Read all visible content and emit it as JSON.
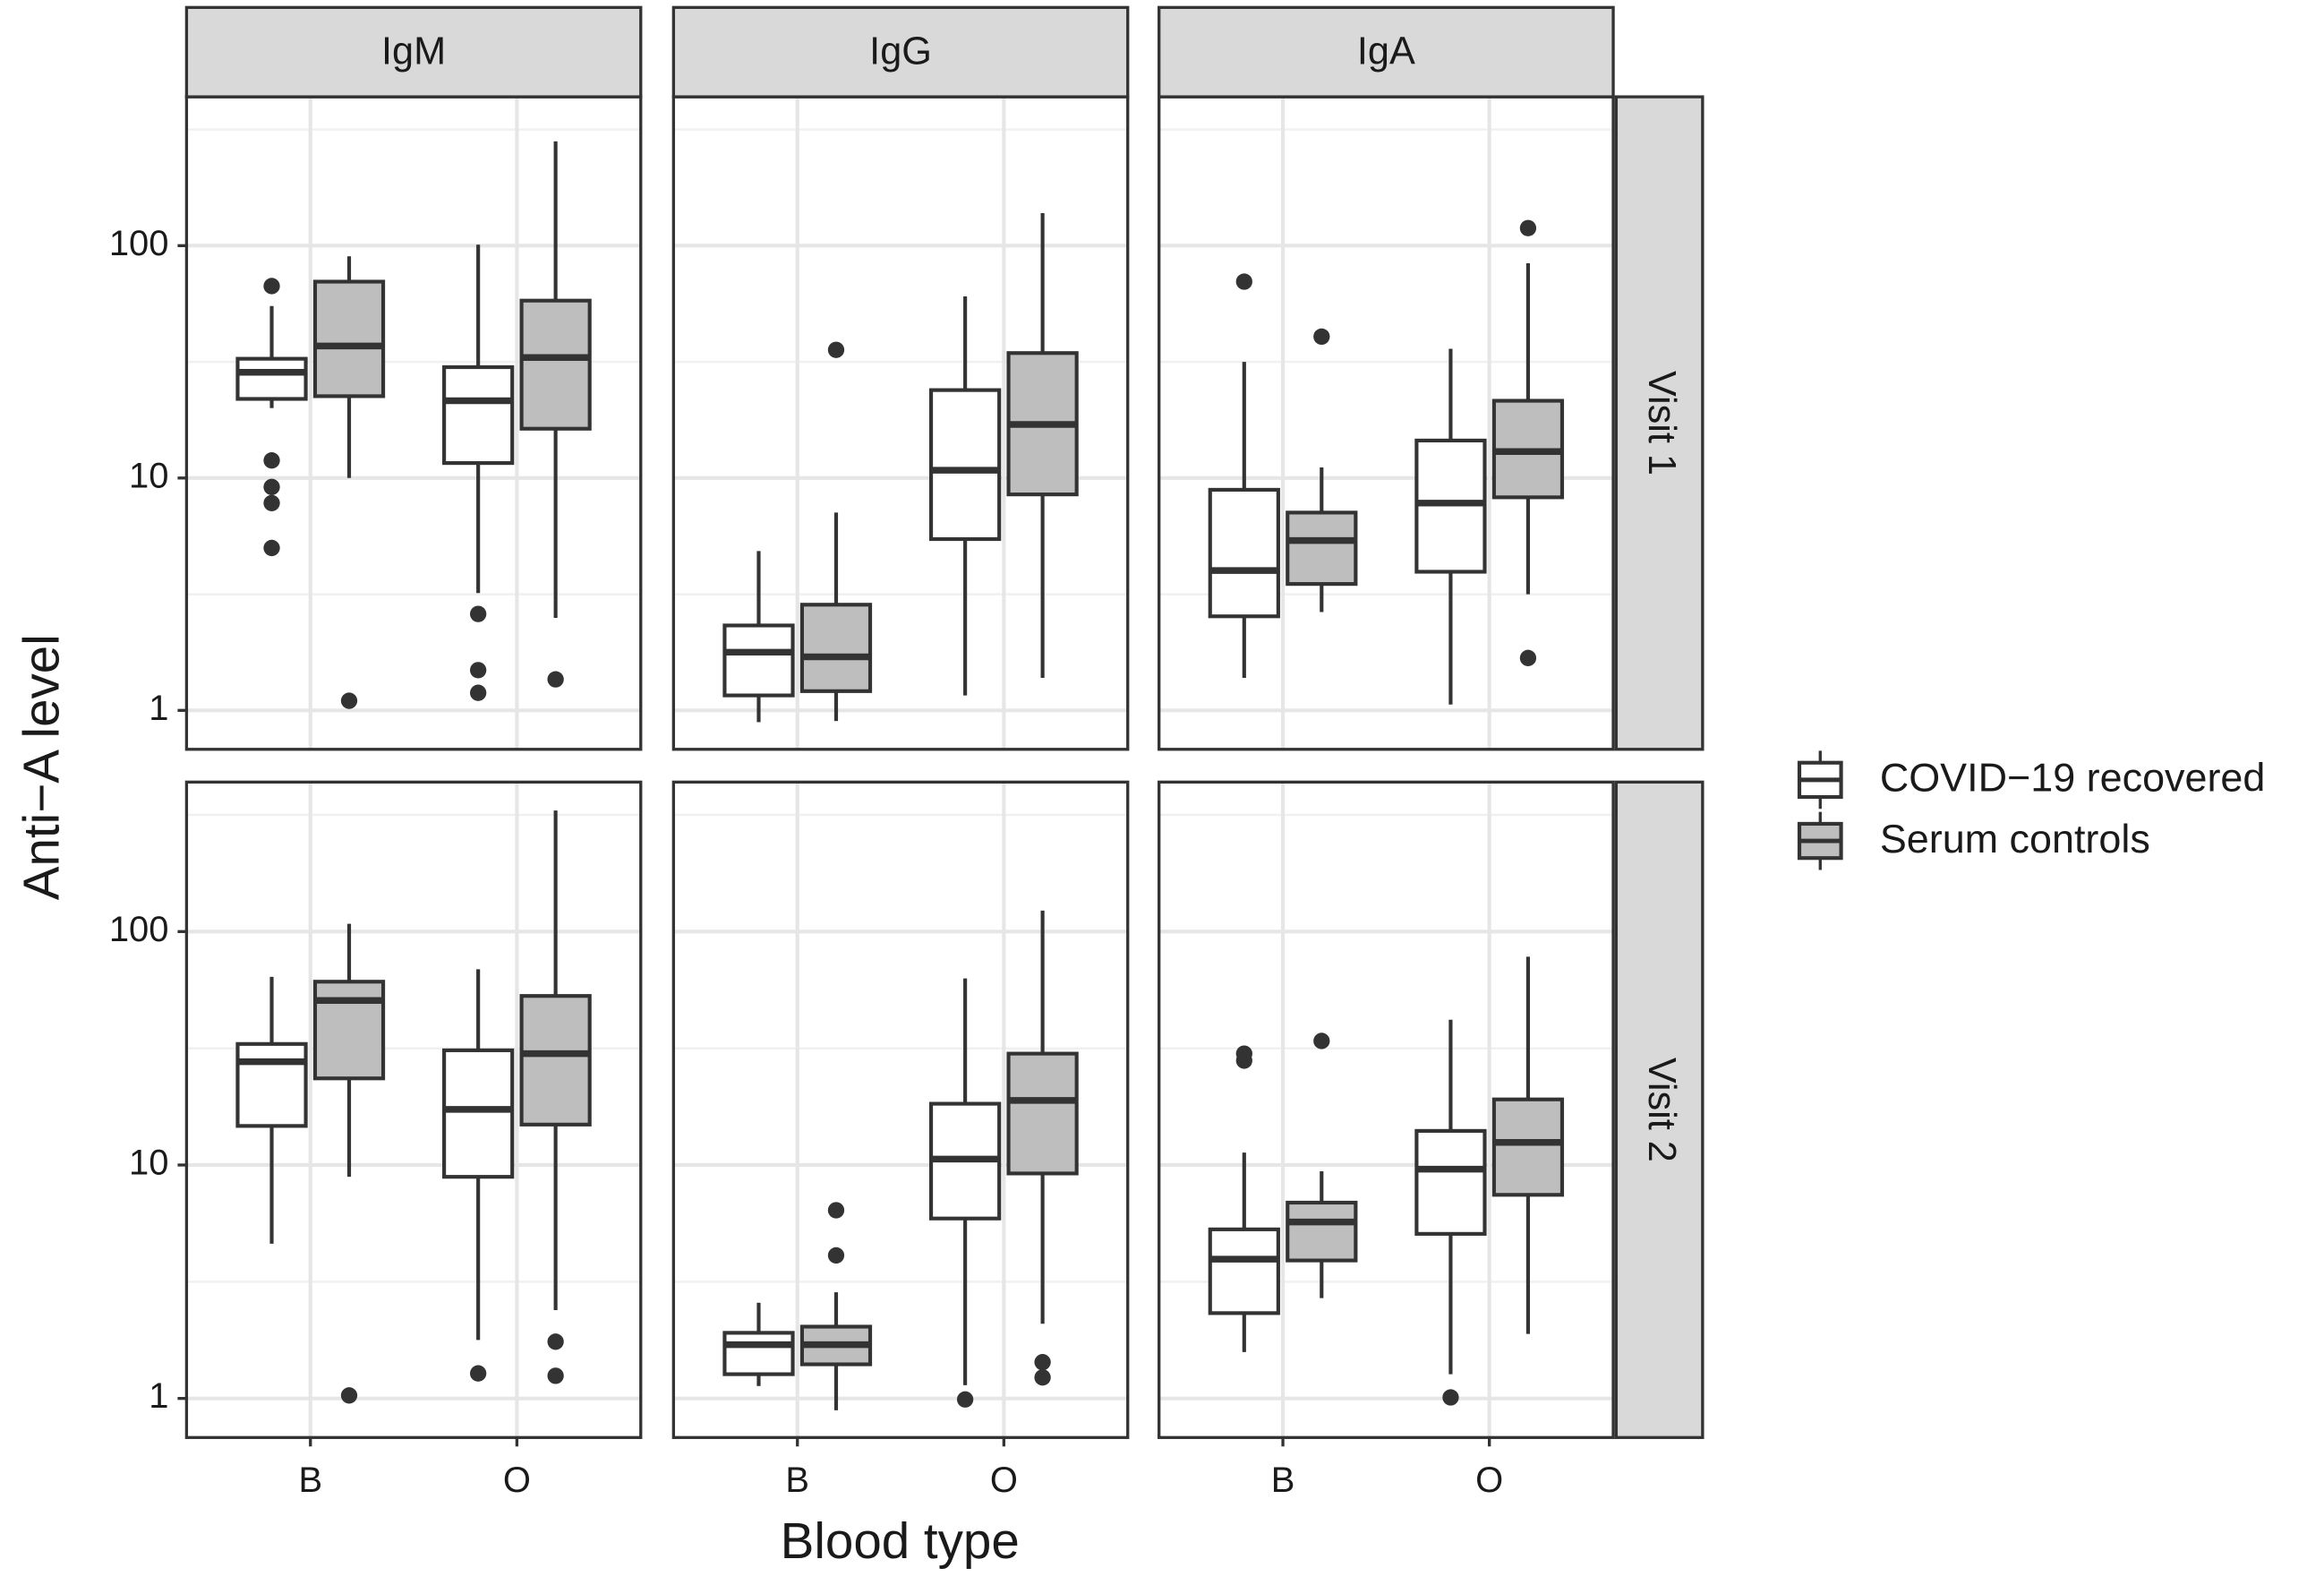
{
  "chart_data": {
    "type": "box",
    "x_label": "Blood type",
    "y_label": "Anti−A level",
    "categories": [
      "B",
      "O"
    ],
    "log_scale": true,
    "ylim": [
      0.68,
      437
    ],
    "yticks": [
      1,
      10,
      100
    ],
    "minor_yticks": [
      3.16,
      31.6,
      316
    ],
    "grid": true,
    "legend_position": "right",
    "series": [
      {
        "name": "COVID−19 recovered",
        "color": "#ffffff"
      },
      {
        "name": "Serum controls",
        "color": "#bebebe"
      }
    ],
    "facet_columns": [
      "IgM",
      "IgG",
      "IgA"
    ],
    "facet_rows": [
      "Visit 1",
      "Visit 2"
    ],
    "panels": [
      [
        [
          [
            {
              "min": 20,
              "q1": 21.9,
              "median": 28.5,
              "q3": 32.6,
              "max": 55,
              "outliers": [
                67,
                11.9,
                9.15,
                7.8,
                5.0
              ]
            },
            {
              "min": 3.2,
              "q1": 11.6,
              "median": 21.5,
              "q3": 30,
              "max": 101,
              "outliers": [
                2.6,
                1.49,
                1.19
              ]
            }
          ],
          [
            {
              "min": 10,
              "q1": 22.5,
              "median": 37,
              "q3": 70,
              "max": 90,
              "outliers": [
                1.1
              ]
            },
            {
              "min": 2.5,
              "q1": 16.3,
              "median": 33,
              "q3": 58,
              "max": 281,
              "outliers": [
                1.36
              ]
            }
          ]
        ],
        [
          [
            {
              "min": 0.89,
              "q1": 1.16,
              "median": 1.78,
              "q3": 2.32,
              "max": 4.85,
              "outliers": []
            },
            {
              "min": 1.16,
              "q1": 5.46,
              "median": 10.8,
              "q3": 23.9,
              "max": 60.5,
              "outliers": []
            }
          ],
          [
            {
              "min": 0.9,
              "q1": 1.21,
              "median": 1.7,
              "q3": 2.85,
              "max": 7.1,
              "outliers": [
                35.6
              ]
            },
            {
              "min": 1.38,
              "q1": 8.5,
              "median": 17,
              "q3": 34.5,
              "max": 138,
              "outliers": []
            }
          ]
        ],
        [
          [
            {
              "min": 1.38,
              "q1": 2.54,
              "median": 4.0,
              "q3": 8.9,
              "max": 31.6,
              "outliers": [
                70
              ]
            },
            {
              "min": 1.06,
              "q1": 3.95,
              "median": 7.8,
              "q3": 14.5,
              "max": 36,
              "outliers": []
            }
          ],
          [
            {
              "min": 2.65,
              "q1": 3.5,
              "median": 5.38,
              "q3": 7.1,
              "max": 11.1,
              "outliers": [
                40.6
              ]
            },
            {
              "min": 3.16,
              "q1": 8.26,
              "median": 13,
              "q3": 21.5,
              "max": 84,
              "outliers": [
                119,
                1.68
              ]
            }
          ]
        ]
      ],
      [
        [
          [
            {
              "min": 4.6,
              "q1": 14.7,
              "median": 27.7,
              "q3": 33,
              "max": 64,
              "outliers": []
            },
            {
              "min": 1.78,
              "q1": 8.9,
              "median": 17.3,
              "q3": 31,
              "max": 69,
              "outliers": [
                1.28
              ]
            }
          ],
          [
            {
              "min": 8.9,
              "q1": 23.5,
              "median": 50.7,
              "q3": 61,
              "max": 108,
              "outliers": [
                1.03
              ]
            },
            {
              "min": 2.39,
              "q1": 14.9,
              "median": 30,
              "q3": 53,
              "max": 330,
              "outliers": [
                1.75,
                1.25
              ]
            }
          ]
        ],
        [
          [
            {
              "min": 1.13,
              "q1": 1.27,
              "median": 1.7,
              "q3": 1.91,
              "max": 2.57,
              "outliers": []
            },
            {
              "min": 1.14,
              "q1": 5.9,
              "median": 10.6,
              "q3": 18.3,
              "max": 63,
              "outliers": [
                0.99
              ]
            }
          ],
          [
            {
              "min": 0.89,
              "q1": 1.4,
              "median": 1.7,
              "q3": 2.03,
              "max": 2.85,
              "outliers": [
                6.4,
                4.1
              ]
            },
            {
              "min": 2.09,
              "q1": 9.2,
              "median": 18.9,
              "q3": 30,
              "max": 123,
              "outliers": [
                1.43,
                1.23
              ]
            }
          ]
        ],
        [
          [
            {
              "min": 1.58,
              "q1": 2.32,
              "median": 3.95,
              "q3": 5.3,
              "max": 11.3,
              "outliers": [
                30,
                28
              ]
            },
            {
              "min": 1.27,
              "q1": 5.07,
              "median": 9.6,
              "q3": 14,
              "max": 41.9,
              "outliers": [
                1.01
              ]
            }
          ],
          [
            {
              "min": 2.69,
              "q1": 3.9,
              "median": 5.7,
              "q3": 6.9,
              "max": 9.4,
              "outliers": [
                34
              ]
            },
            {
              "min": 1.89,
              "q1": 7.45,
              "median": 12.5,
              "q3": 19.1,
              "max": 78,
              "outliers": []
            }
          ]
        ]
      ]
    ]
  }
}
